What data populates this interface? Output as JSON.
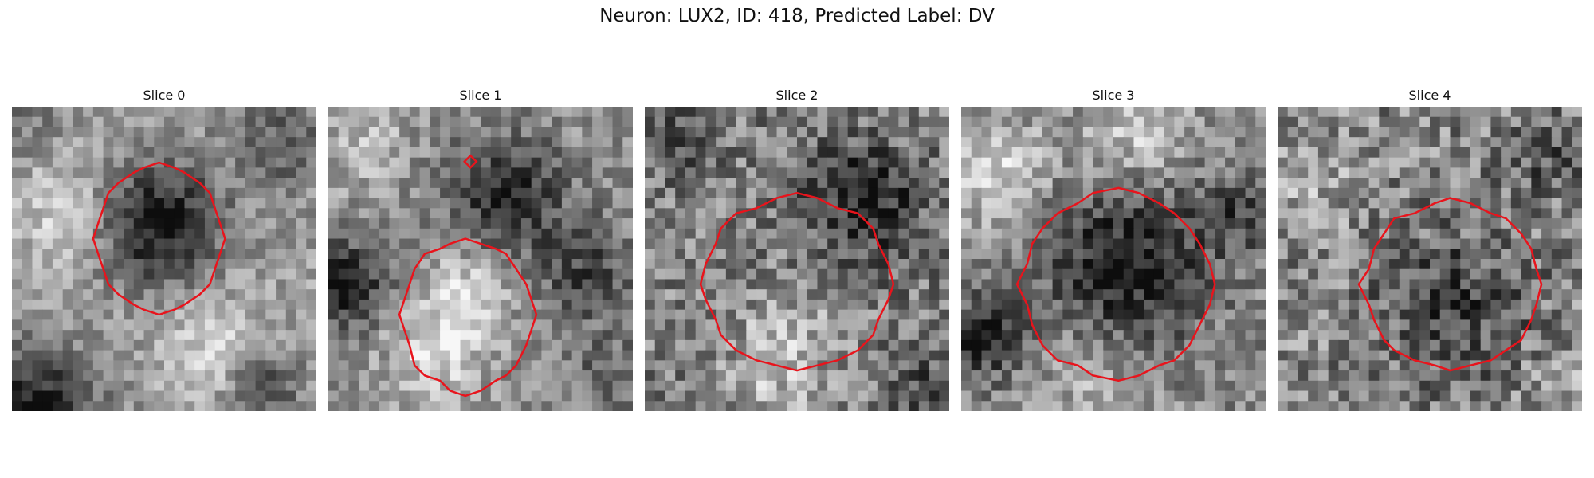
{
  "figure": {
    "title": "Neuron: LUX2, ID: 418, Predicted Label: DV"
  },
  "colors": {
    "contour": "#e8141c",
    "background": "#ffffff"
  },
  "panels": [
    {
      "title": "Slice 0",
      "image": "grayscale-microscopy-slice",
      "overlay": "red-roi-contour"
    },
    {
      "title": "Slice 1",
      "image": "grayscale-microscopy-slice",
      "overlay": "red-roi-contour"
    },
    {
      "title": "Slice 2",
      "image": "grayscale-microscopy-slice",
      "overlay": "red-roi-contour"
    },
    {
      "title": "Slice 3",
      "image": "grayscale-microscopy-slice",
      "overlay": "red-roi-contour"
    },
    {
      "title": "Slice 4",
      "image": "grayscale-microscopy-slice",
      "overlay": "red-roi-contour"
    }
  ]
}
